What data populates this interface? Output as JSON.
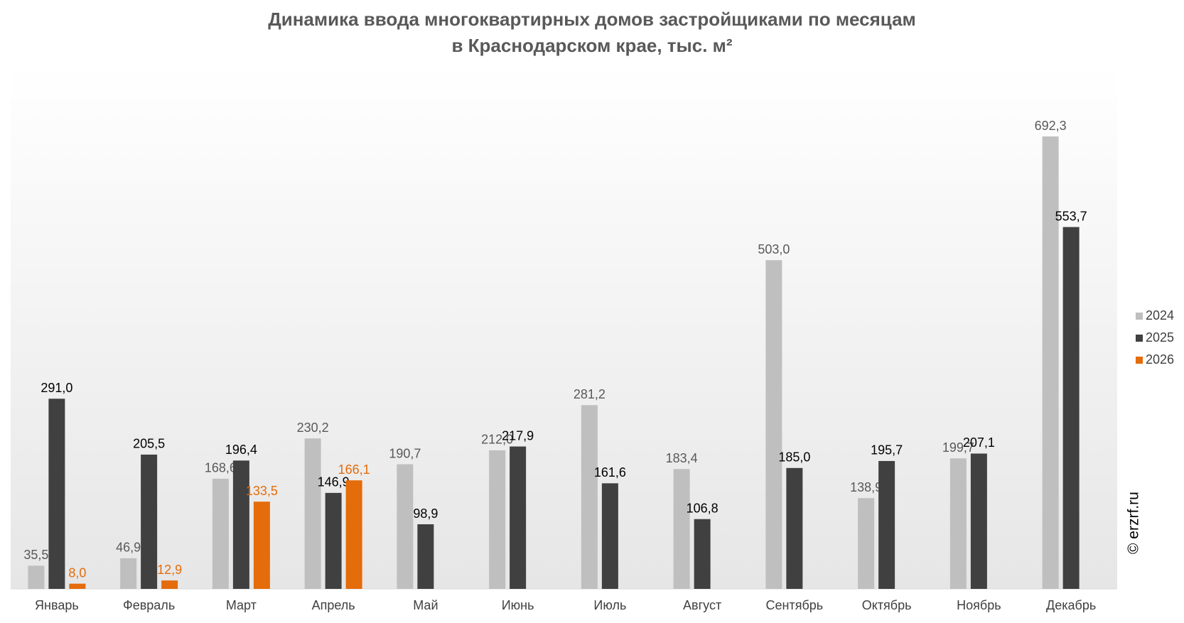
{
  "chart_data": {
    "type": "bar",
    "title": "Динамика ввода многоквартирных домов застройщиками по месяцам",
    "subtitle": "в Краснодарском крае, тыс. м²",
    "watermark": "© erzrf.ru",
    "categories": [
      "Январь",
      "Февраль",
      "Март",
      "Апрель",
      "Май",
      "Июнь",
      "Июль",
      "Август",
      "Сентябрь",
      "Октябрь",
      "Ноябрь",
      "Декабрь"
    ],
    "series": [
      {
        "name": "2024",
        "color": "#bfbfbf",
        "label_color": "#595959",
        "values": [
          35.5,
          46.9,
          168.6,
          230.2,
          190.7,
          212.0,
          281.2,
          183.4,
          503.0,
          138.9,
          199.7,
          692.3
        ],
        "value_labels": [
          "35,5",
          "46,9",
          "168,6",
          "230,2",
          "190,7",
          "212,0",
          "281,2",
          "183,4",
          "503,0",
          "138,9",
          "199,7",
          "692,3"
        ]
      },
      {
        "name": "2025",
        "color": "#404040",
        "label_color": "#000000",
        "values": [
          291.0,
          205.5,
          196.4,
          146.9,
          98.9,
          217.9,
          161.6,
          106.8,
          185.0,
          195.7,
          207.1,
          553.7
        ],
        "value_labels": [
          "291,0",
          "205,5",
          "196,4",
          "146,9",
          "98,9",
          "217,9",
          "161,6",
          "106,8",
          "185,0",
          "195,7",
          "207,1",
          "553,7"
        ]
      },
      {
        "name": "2026",
        "color": "#e46c0a",
        "label_color": "#e46c0a",
        "values": [
          8.0,
          12.9,
          133.5,
          166.1,
          null,
          null,
          null,
          null,
          null,
          null,
          null,
          null
        ],
        "value_labels": [
          "8,0",
          "12,9",
          "133,5",
          "166,1",
          null,
          null,
          null,
          null,
          null,
          null,
          null,
          null
        ]
      }
    ],
    "ylim": [
      0,
      800
    ],
    "legend": "right"
  }
}
